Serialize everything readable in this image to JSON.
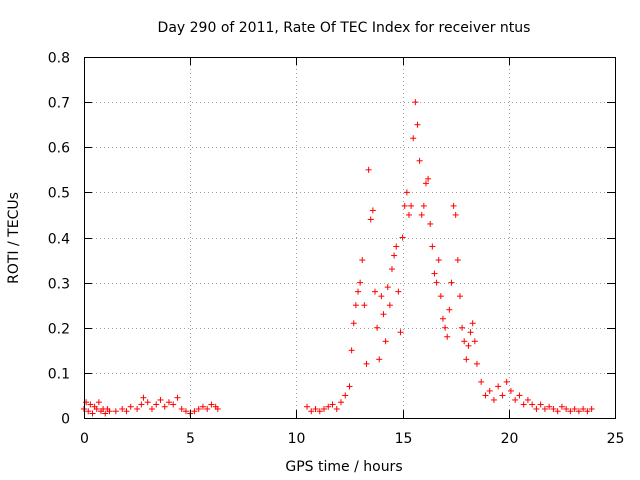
{
  "chart_data": {
    "type": "scatter",
    "title": "Day 290 of 2011, Rate Of TEC Index for receiver ntus",
    "xlabel": "GPS time / hours",
    "ylabel": "ROTI / TECUs",
    "xlim": [
      0,
      25
    ],
    "ylim": [
      0,
      0.8
    ],
    "x_ticks": [
      "0",
      "5",
      "10",
      "15",
      "20",
      "25"
    ],
    "y_ticks": [
      "0",
      "0.1",
      "0.2",
      "0.3",
      "0.4",
      "0.5",
      "0.6",
      "0.7",
      "0.8"
    ],
    "grid": true,
    "marker": "+",
    "color": "#ff0000",
    "series": [
      {
        "points": [
          [
            0.0,
            0.02
          ],
          [
            0.1,
            0.035
          ],
          [
            0.2,
            0.015
          ],
          [
            0.3,
            0.03
          ],
          [
            0.4,
            0.01
          ],
          [
            0.5,
            0.025
          ],
          [
            0.6,
            0.02
          ],
          [
            0.7,
            0.035
          ],
          [
            0.8,
            0.015
          ],
          [
            0.9,
            0.02
          ],
          [
            1.0,
            0.01
          ],
          [
            1.1,
            0.02
          ],
          [
            1.2,
            0.015
          ],
          [
            1.5,
            0.015
          ],
          [
            1.8,
            0.02
          ],
          [
            2.0,
            0.015
          ],
          [
            2.2,
            0.025
          ],
          [
            2.5,
            0.02
          ],
          [
            2.7,
            0.03
          ],
          [
            2.8,
            0.045
          ],
          [
            3.0,
            0.035
          ],
          [
            3.2,
            0.02
          ],
          [
            3.4,
            0.03
          ],
          [
            3.6,
            0.04
          ],
          [
            3.8,
            0.025
          ],
          [
            4.0,
            0.035
          ],
          [
            4.2,
            0.03
          ],
          [
            4.4,
            0.045
          ],
          [
            4.6,
            0.02
          ],
          [
            4.8,
            0.015
          ],
          [
            5.0,
            0.01
          ],
          [
            5.2,
            0.015
          ],
          [
            5.4,
            0.02
          ],
          [
            5.6,
            0.025
          ],
          [
            5.8,
            0.02
          ],
          [
            6.0,
            0.03
          ],
          [
            6.2,
            0.025
          ],
          [
            6.3,
            0.02
          ],
          [
            10.5,
            0.025
          ],
          [
            10.7,
            0.015
          ],
          [
            10.9,
            0.02
          ],
          [
            11.1,
            0.015
          ],
          [
            11.3,
            0.02
          ],
          [
            11.5,
            0.025
          ],
          [
            11.7,
            0.03
          ],
          [
            11.9,
            0.02
          ],
          [
            12.1,
            0.035
          ],
          [
            12.3,
            0.05
          ],
          [
            12.5,
            0.07
          ],
          [
            12.6,
            0.15
          ],
          [
            12.7,
            0.21
          ],
          [
            12.8,
            0.25
          ],
          [
            12.9,
            0.28
          ],
          [
            13.0,
            0.3
          ],
          [
            13.1,
            0.35
          ],
          [
            13.2,
            0.25
          ],
          [
            13.3,
            0.12
          ],
          [
            13.4,
            0.55
          ],
          [
            13.5,
            0.44
          ],
          [
            13.6,
            0.46
          ],
          [
            13.7,
            0.28
          ],
          [
            13.8,
            0.2
          ],
          [
            13.9,
            0.13
          ],
          [
            14.0,
            0.27
          ],
          [
            14.1,
            0.23
          ],
          [
            14.2,
            0.17
          ],
          [
            14.3,
            0.29
          ],
          [
            14.4,
            0.25
          ],
          [
            14.5,
            0.33
          ],
          [
            14.6,
            0.36
          ],
          [
            14.7,
            0.38
          ],
          [
            14.8,
            0.28
          ],
          [
            14.9,
            0.19
          ],
          [
            15.0,
            0.4
          ],
          [
            15.1,
            0.47
          ],
          [
            15.2,
            0.5
          ],
          [
            15.3,
            0.45
          ],
          [
            15.4,
            0.47
          ],
          [
            15.5,
            0.62
          ],
          [
            15.6,
            0.7
          ],
          [
            15.7,
            0.65
          ],
          [
            15.8,
            0.57
          ],
          [
            15.9,
            0.45
          ],
          [
            16.0,
            0.47
          ],
          [
            16.1,
            0.52
          ],
          [
            16.2,
            0.53
          ],
          [
            16.3,
            0.43
          ],
          [
            16.4,
            0.38
          ],
          [
            16.5,
            0.32
          ],
          [
            16.6,
            0.3
          ],
          [
            16.7,
            0.35
          ],
          [
            16.8,
            0.27
          ],
          [
            16.9,
            0.22
          ],
          [
            17.0,
            0.2
          ],
          [
            17.1,
            0.18
          ],
          [
            17.2,
            0.24
          ],
          [
            17.3,
            0.3
          ],
          [
            17.4,
            0.47
          ],
          [
            17.5,
            0.45
          ],
          [
            17.6,
            0.35
          ],
          [
            17.7,
            0.27
          ],
          [
            17.8,
            0.2
          ],
          [
            17.9,
            0.17
          ],
          [
            18.0,
            0.13
          ],
          [
            18.1,
            0.16
          ],
          [
            18.2,
            0.19
          ],
          [
            18.3,
            0.21
          ],
          [
            18.4,
            0.17
          ],
          [
            18.5,
            0.12
          ],
          [
            18.7,
            0.08
          ],
          [
            18.9,
            0.05
          ],
          [
            19.1,
            0.06
          ],
          [
            19.3,
            0.04
          ],
          [
            19.5,
            0.07
          ],
          [
            19.7,
            0.05
          ],
          [
            19.9,
            0.08
          ],
          [
            20.1,
            0.06
          ],
          [
            20.3,
            0.04
          ],
          [
            20.5,
            0.05
          ],
          [
            20.7,
            0.03
          ],
          [
            20.9,
            0.04
          ],
          [
            21.1,
            0.03
          ],
          [
            21.3,
            0.02
          ],
          [
            21.5,
            0.03
          ],
          [
            21.7,
            0.02
          ],
          [
            21.9,
            0.025
          ],
          [
            22.1,
            0.02
          ],
          [
            22.3,
            0.015
          ],
          [
            22.5,
            0.025
          ],
          [
            22.7,
            0.02
          ],
          [
            22.9,
            0.015
          ],
          [
            23.1,
            0.02
          ],
          [
            23.3,
            0.015
          ],
          [
            23.5,
            0.02
          ],
          [
            23.7,
            0.015
          ],
          [
            23.9,
            0.02
          ]
        ]
      }
    ]
  }
}
